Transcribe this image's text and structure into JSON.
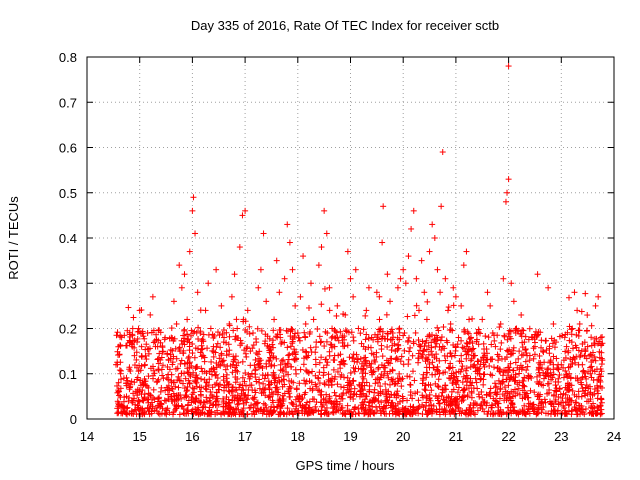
{
  "chart_data": {
    "type": "scatter",
    "title": "Day 335 of 2016, Rate Of TEC Index for receiver sctb",
    "xlabel": "GPS time / hours",
    "ylabel": "ROTI / TECUs",
    "xlim": [
      14,
      24
    ],
    "ylim": [
      0,
      0.8
    ],
    "xticks": [
      "14",
      "15",
      "16",
      "17",
      "18",
      "19",
      "20",
      "21",
      "22",
      "23",
      "24"
    ],
    "yticks": [
      "0",
      "0.1",
      "0.2",
      "0.3",
      "0.4",
      "0.5",
      "0.6",
      "0.7",
      "0.8"
    ],
    "grid": true,
    "marker": "+",
    "color": "#ff0000",
    "x_range_of_data": [
      14.55,
      23.78
    ],
    "typical_band": [
      0.01,
      0.2
    ],
    "series": [
      {
        "name": "ROTI",
        "points": [
          [
            14.55,
            0.12
          ],
          [
            14.6,
            0.06
          ],
          [
            14.65,
            0.03
          ],
          [
            14.7,
            0.09
          ],
          [
            14.75,
            0.05
          ],
          [
            14.8,
            0.11
          ],
          [
            14.85,
            0.04
          ],
          [
            14.9,
            0.14
          ],
          [
            14.95,
            0.17
          ],
          [
            15.0,
            0.24
          ],
          [
            15.05,
            0.08
          ],
          [
            15.1,
            0.12
          ],
          [
            15.15,
            0.19
          ],
          [
            15.2,
            0.23
          ],
          [
            15.25,
            0.27
          ],
          [
            15.3,
            0.16
          ],
          [
            15.35,
            0.11
          ],
          [
            15.4,
            0.06
          ],
          [
            15.45,
            0.09
          ],
          [
            15.5,
            0.04
          ],
          [
            15.55,
            0.13
          ],
          [
            15.6,
            0.18
          ],
          [
            15.65,
            0.26
          ],
          [
            15.7,
            0.21
          ],
          [
            15.75,
            0.34
          ],
          [
            15.8,
            0.29
          ],
          [
            15.85,
            0.32
          ],
          [
            15.9,
            0.22
          ],
          [
            15.95,
            0.37
          ],
          [
            16.0,
            0.46
          ],
          [
            16.02,
            0.49
          ],
          [
            16.05,
            0.41
          ],
          [
            16.1,
            0.28
          ],
          [
            16.15,
            0.19
          ],
          [
            16.2,
            0.14
          ],
          [
            16.25,
            0.24
          ],
          [
            16.3,
            0.3
          ],
          [
            16.35,
            0.2
          ],
          [
            16.4,
            0.16
          ],
          [
            16.45,
            0.33
          ],
          [
            16.5,
            0.12
          ],
          [
            16.55,
            0.25
          ],
          [
            16.6,
            0.18
          ],
          [
            16.65,
            0.09
          ],
          [
            16.7,
            0.21
          ],
          [
            16.75,
            0.27
          ],
          [
            16.8,
            0.32
          ],
          [
            16.85,
            0.2
          ],
          [
            16.9,
            0.38
          ],
          [
            16.95,
            0.45
          ],
          [
            17.0,
            0.46
          ],
          [
            17.05,
            0.24
          ],
          [
            17.1,
            0.15
          ],
          [
            17.15,
            0.19
          ],
          [
            17.2,
            0.11
          ],
          [
            17.25,
            0.29
          ],
          [
            17.3,
            0.33
          ],
          [
            17.35,
            0.41
          ],
          [
            17.4,
            0.26
          ],
          [
            17.45,
            0.13
          ],
          [
            17.5,
            0.08
          ],
          [
            17.55,
            0.22
          ],
          [
            17.6,
            0.35
          ],
          [
            17.65,
            0.28
          ],
          [
            17.7,
            0.17
          ],
          [
            17.75,
            0.31
          ],
          [
            17.8,
            0.43
          ],
          [
            17.85,
            0.39
          ],
          [
            17.9,
            0.33
          ],
          [
            17.95,
            0.25
          ],
          [
            18.0,
            0.19
          ],
          [
            18.05,
            0.27
          ],
          [
            18.1,
            0.36
          ],
          [
            18.15,
            0.21
          ],
          [
            18.2,
            0.14
          ],
          [
            18.25,
            0.3
          ],
          [
            18.3,
            0.22
          ],
          [
            18.35,
            0.17
          ],
          [
            18.4,
            0.34
          ],
          [
            18.45,
            0.38
          ],
          [
            18.5,
            0.46
          ],
          [
            18.55,
            0.41
          ],
          [
            18.6,
            0.29
          ],
          [
            18.65,
            0.2
          ],
          [
            18.7,
            0.16
          ],
          [
            18.75,
            0.25
          ],
          [
            18.8,
            0.12
          ],
          [
            18.85,
            0.18
          ],
          [
            18.9,
            0.23
          ],
          [
            18.95,
            0.37
          ],
          [
            19.0,
            0.31
          ],
          [
            19.05,
            0.27
          ],
          [
            19.1,
            0.33
          ],
          [
            19.15,
            0.2
          ],
          [
            19.2,
            0.11
          ],
          [
            19.25,
            0.16
          ],
          [
            19.3,
            0.24
          ],
          [
            19.35,
            0.29
          ],
          [
            19.4,
            0.18
          ],
          [
            19.45,
            0.13
          ],
          [
            19.5,
            0.28
          ],
          [
            19.55,
            0.22
          ],
          [
            19.6,
            0.39
          ],
          [
            19.62,
            0.47
          ],
          [
            19.7,
            0.32
          ],
          [
            19.75,
            0.26
          ],
          [
            19.8,
            0.19
          ],
          [
            19.85,
            0.15
          ],
          [
            19.9,
            0.29
          ],
          [
            19.95,
            0.31
          ],
          [
            20.0,
            0.33
          ],
          [
            20.05,
            0.3
          ],
          [
            20.1,
            0.36
          ],
          [
            20.15,
            0.42
          ],
          [
            20.2,
            0.46
          ],
          [
            20.25,
            0.31
          ],
          [
            20.3,
            0.24
          ],
          [
            20.35,
            0.35
          ],
          [
            20.4,
            0.28
          ],
          [
            20.45,
            0.22
          ],
          [
            20.5,
            0.37
          ],
          [
            20.55,
            0.43
          ],
          [
            20.6,
            0.4
          ],
          [
            20.65,
            0.33
          ],
          [
            20.7,
            0.28
          ],
          [
            20.72,
            0.47
          ],
          [
            20.75,
            0.59
          ],
          [
            20.8,
            0.31
          ],
          [
            20.85,
            0.24
          ],
          [
            20.9,
            0.21
          ],
          [
            20.95,
            0.29
          ],
          [
            21.0,
            0.27
          ],
          [
            21.05,
            0.18
          ],
          [
            21.1,
            0.25
          ],
          [
            21.15,
            0.34
          ],
          [
            21.2,
            0.37
          ],
          [
            21.25,
            0.22
          ],
          [
            21.3,
            0.15
          ],
          [
            21.35,
            0.12
          ],
          [
            21.4,
            0.19
          ],
          [
            21.45,
            0.1
          ],
          [
            21.5,
            0.22
          ],
          [
            21.55,
            0.14
          ],
          [
            21.6,
            0.28
          ],
          [
            21.65,
            0.25
          ],
          [
            21.7,
            0.19
          ],
          [
            21.75,
            0.16
          ],
          [
            21.8,
            0.13
          ],
          [
            21.85,
            0.21
          ],
          [
            21.9,
            0.31
          ],
          [
            21.95,
            0.48
          ],
          [
            21.97,
            0.5
          ],
          [
            22.0,
            0.53
          ],
          [
            22.0,
            0.78
          ],
          [
            22.05,
            0.3
          ],
          [
            22.1,
            0.26
          ],
          [
            22.15,
            0.2
          ],
          [
            22.2,
            0.15
          ],
          [
            22.25,
            0.11
          ],
          [
            22.3,
            0.17
          ],
          [
            22.35,
            0.14
          ],
          [
            22.4,
            0.13
          ],
          [
            22.45,
            0.18
          ],
          [
            22.5,
            0.16
          ],
          [
            22.55,
            0.32
          ],
          [
            22.6,
            0.12
          ],
          [
            22.65,
            0.15
          ],
          [
            22.7,
            0.1
          ],
          [
            22.75,
            0.29
          ],
          [
            22.8,
            0.13
          ],
          [
            22.85,
            0.21
          ],
          [
            22.9,
            0.17
          ],
          [
            22.95,
            0.11
          ],
          [
            23.0,
            0.12
          ],
          [
            23.05,
            0.13
          ],
          [
            23.1,
            0.16
          ],
          [
            23.15,
            0.1
          ],
          [
            23.2,
            0.17
          ],
          [
            23.25,
            0.28
          ],
          [
            23.3,
            0.24
          ],
          [
            23.35,
            0.21
          ],
          [
            23.4,
            0.12
          ],
          [
            23.45,
            0.14
          ],
          [
            23.5,
            0.16
          ],
          [
            23.55,
            0.1
          ],
          [
            23.6,
            0.13
          ],
          [
            23.65,
            0.25
          ],
          [
            23.7,
            0.27
          ],
          [
            23.75,
            0.18
          ],
          [
            23.78,
            0.13
          ]
        ]
      }
    ]
  }
}
